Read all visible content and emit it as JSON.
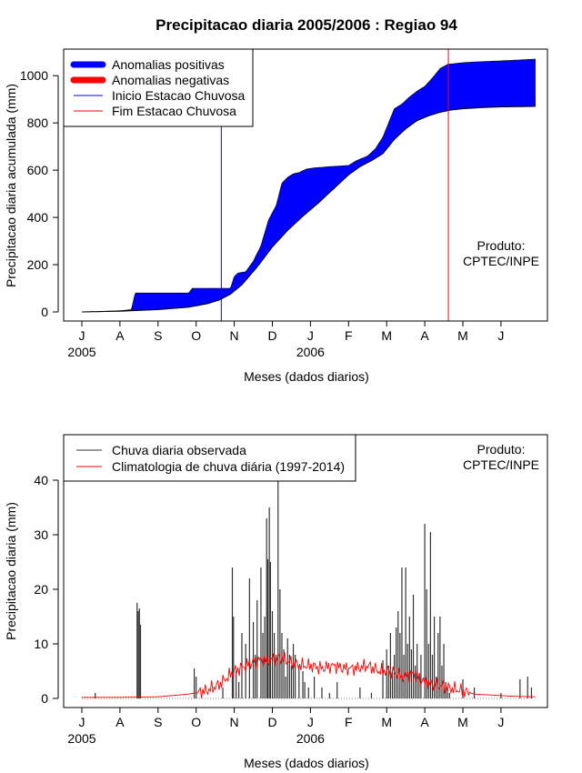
{
  "chart_data": [
    {
      "type": "area",
      "title": "Precipitacao diaria 2005/2006 : Regiao 94",
      "xlabel": "Meses (dados diarios)",
      "ylabel": "Precipitacao diaria acumulada (mm)",
      "ylim": [
        0,
        1100
      ],
      "yticks": [
        0,
        200,
        400,
        600,
        800,
        1000
      ],
      "x_ticks": [
        "J",
        "A",
        "S",
        "O",
        "N",
        "D",
        "J",
        "F",
        "M",
        "A",
        "M",
        "J"
      ],
      "year_labels": [
        {
          "label": "2005",
          "month_index": 0
        },
        {
          "label": "2006",
          "month_index": 6
        }
      ],
      "legend": {
        "placement": "top-left",
        "entries": [
          {
            "label": "Anomalias positivas",
            "color": "#0000ff",
            "style": "thick"
          },
          {
            "label": "Anomalias negativas",
            "color": "#ff0000",
            "style": "thick"
          },
          {
            "label": "Inicio Estacao Chuvosa",
            "color": "#0000ff",
            "style": "thin"
          },
          {
            "label": "Fim Estacao Chuvosa",
            "color": "#ff0000",
            "style": "thin"
          }
        ]
      },
      "annotation": [
        "Produto:",
        "CPTEC/INPE"
      ],
      "vlines": [
        {
          "name": "Inicio Estacao Chuvosa",
          "month": 3.66,
          "color": "#0000ff"
        },
        {
          "name": "Fim Estacao Chuvosa",
          "month": 9.62,
          "color": "#ff0000"
        }
      ],
      "series": [
        {
          "name": "observed_cumulative",
          "x_month": [
            0,
            1.0,
            1.3,
            1.4,
            1.5,
            2.8,
            2.9,
            3.0,
            3.9,
            4.0,
            4.1,
            4.3,
            4.5,
            4.7,
            4.9,
            5.1,
            5.25,
            5.4,
            5.55,
            5.7,
            5.9,
            6.1,
            6.3,
            6.5,
            7.0,
            7.2,
            7.5,
            7.7,
            7.9,
            8.2,
            8.4,
            8.5,
            8.6,
            8.8,
            9.0,
            9.2,
            9.4,
            9.6,
            10.0,
            10.3,
            10.6,
            10.9,
            11.3,
            11.9
          ],
          "values": [
            0,
            5,
            10,
            80,
            80,
            80,
            100,
            100,
            100,
            150,
            165,
            170,
            215,
            280,
            390,
            450,
            545,
            570,
            585,
            590,
            605,
            610,
            612,
            615,
            620,
            640,
            660,
            690,
            740,
            860,
            880,
            895,
            910,
            935,
            955,
            990,
            1030,
            1048,
            1055,
            1058,
            1060,
            1062,
            1065,
            1070
          ]
        },
        {
          "name": "climatology_cumulative",
          "x_month": [
            0,
            1.0,
            2.0,
            2.8,
            3.3,
            3.6,
            3.9,
            4.2,
            4.6,
            5.0,
            5.4,
            5.8,
            6.2,
            6.6,
            7.0,
            7.3,
            7.6,
            7.9,
            8.2,
            8.5,
            8.8,
            9.1,
            9.4,
            9.7,
            10.0,
            10.5,
            11.0,
            11.9
          ],
          "values": [
            0,
            3,
            10,
            20,
            35,
            50,
            75,
            115,
            190,
            275,
            345,
            405,
            460,
            520,
            580,
            615,
            640,
            670,
            730,
            775,
            810,
            830,
            845,
            855,
            860,
            865,
            868,
            870
          ]
        }
      ]
    },
    {
      "type": "bar",
      "xlabel": "Meses (dados diarios)",
      "ylabel": "Precipitacao diaria (mm)",
      "ylim": [
        0,
        40
      ],
      "yticks": [
        0,
        10,
        20,
        30,
        40
      ],
      "x_ticks": [
        "J",
        "A",
        "S",
        "O",
        "N",
        "D",
        "J",
        "F",
        "M",
        "A",
        "M",
        "J"
      ],
      "year_labels": [
        {
          "label": "2005",
          "month_index": 0
        },
        {
          "label": "2006",
          "month_index": 6
        }
      ],
      "legend": {
        "placement": "top-left",
        "entries": [
          {
            "label": "Chuva diaria observada",
            "color": "#333333"
          },
          {
            "label": "Climatologia de chuva diária (1997-2014)",
            "color": "#ff0000"
          }
        ]
      },
      "annotation": [
        "Produto:",
        "CPTEC/INPE"
      ],
      "series": [
        {
          "name": "observed_daily",
          "x_month": [
            0.35,
            1.45,
            1.48,
            1.51,
            1.54,
            2.95,
            3.0,
            3.7,
            3.95,
            3.98,
            4.05,
            4.12,
            4.2,
            4.3,
            4.4,
            4.5,
            4.55,
            4.6,
            4.7,
            4.75,
            4.8,
            4.85,
            4.88,
            4.92,
            4.95,
            5.0,
            5.05,
            5.1,
            5.15,
            5.2,
            5.25,
            5.3,
            5.35,
            5.4,
            5.45,
            5.5,
            5.55,
            5.6,
            5.7,
            5.8,
            5.85,
            5.95,
            6.1,
            6.3,
            6.5,
            6.7,
            7.3,
            7.6,
            7.9,
            8.0,
            8.05,
            8.1,
            8.15,
            8.2,
            8.25,
            8.3,
            8.35,
            8.4,
            8.45,
            8.5,
            8.55,
            8.6,
            8.65,
            8.7,
            8.75,
            8.8,
            8.85,
            8.9,
            9.0,
            9.05,
            9.1,
            9.15,
            9.2,
            9.25,
            9.3,
            9.35,
            9.4,
            9.45,
            9.5,
            9.55,
            9.6,
            9.65,
            10.0,
            10.3,
            11.0,
            11.5,
            11.7,
            11.8
          ],
          "values": [
            1,
            17.5,
            16,
            16.5,
            13.5,
            5.5,
            4,
            2,
            24,
            15,
            5,
            3,
            12,
            10,
            22,
            14,
            8,
            18,
            24,
            12,
            15,
            33,
            25.5,
            35,
            25,
            16,
            12,
            8,
            40,
            20,
            12,
            9,
            4,
            11,
            8,
            6,
            10,
            8,
            6,
            5,
            3,
            2,
            4,
            2,
            1,
            3,
            2,
            1,
            7,
            9,
            6,
            12,
            5,
            8,
            13,
            16,
            12,
            24,
            8,
            24,
            10,
            15,
            9,
            19,
            6,
            10,
            4,
            8,
            32,
            20,
            10,
            30.5,
            8,
            15,
            4,
            12,
            15,
            6,
            10,
            3,
            2,
            1,
            3.5,
            2,
            1,
            3.5,
            4,
            2
          ]
        },
        {
          "name": "climatology_daily",
          "x_month": [
            0,
            1.0,
            2.0,
            2.8,
            3.0,
            3.3,
            3.6,
            4.0,
            4.3,
            4.6,
            4.9,
            5.2,
            5.5,
            5.8,
            6.0,
            6.3,
            6.6,
            6.9,
            7.2,
            7.5,
            7.8,
            8.1,
            8.4,
            8.7,
            9.0,
            9.3,
            9.6,
            9.9,
            10.3,
            10.8,
            11.3,
            11.9
          ],
          "values": [
            0.2,
            0.2,
            0.3,
            0.8,
            1,
            1.5,
            2.5,
            5,
            6,
            7,
            7,
            7.5,
            6.5,
            6,
            6,
            5.5,
            6,
            5.5,
            5.5,
            6,
            5,
            5,
            4,
            4.5,
            3,
            2.5,
            2,
            1.5,
            0.8,
            0.6,
            0.4,
            0.3
          ]
        }
      ]
    }
  ]
}
